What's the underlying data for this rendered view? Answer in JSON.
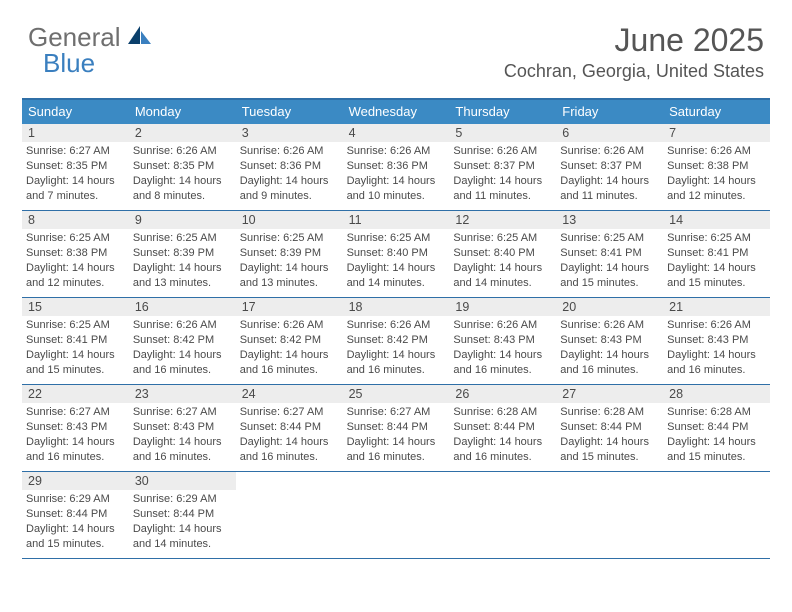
{
  "logo": {
    "part1": "General",
    "part2": "Blue"
  },
  "title": "June 2025",
  "location": "Cochran, Georgia, United States",
  "colors": {
    "header_bg": "#3b8ac4",
    "border": "#2f6fa7",
    "daynum_bg": "#ededed",
    "text": "#4a4a4a",
    "logo_gray": "#6f6f6f",
    "logo_blue": "#3a7fbf"
  },
  "day_names": [
    "Sunday",
    "Monday",
    "Tuesday",
    "Wednesday",
    "Thursday",
    "Friday",
    "Saturday"
  ],
  "weeks": [
    [
      {
        "n": "1",
        "sunrise": "Sunrise: 6:27 AM",
        "sunset": "Sunset: 8:35 PM",
        "day1": "Daylight: 14 hours",
        "day2": "and 7 minutes."
      },
      {
        "n": "2",
        "sunrise": "Sunrise: 6:26 AM",
        "sunset": "Sunset: 8:35 PM",
        "day1": "Daylight: 14 hours",
        "day2": "and 8 minutes."
      },
      {
        "n": "3",
        "sunrise": "Sunrise: 6:26 AM",
        "sunset": "Sunset: 8:36 PM",
        "day1": "Daylight: 14 hours",
        "day2": "and 9 minutes."
      },
      {
        "n": "4",
        "sunrise": "Sunrise: 6:26 AM",
        "sunset": "Sunset: 8:36 PM",
        "day1": "Daylight: 14 hours",
        "day2": "and 10 minutes."
      },
      {
        "n": "5",
        "sunrise": "Sunrise: 6:26 AM",
        "sunset": "Sunset: 8:37 PM",
        "day1": "Daylight: 14 hours",
        "day2": "and 11 minutes."
      },
      {
        "n": "6",
        "sunrise": "Sunrise: 6:26 AM",
        "sunset": "Sunset: 8:37 PM",
        "day1": "Daylight: 14 hours",
        "day2": "and 11 minutes."
      },
      {
        "n": "7",
        "sunrise": "Sunrise: 6:26 AM",
        "sunset": "Sunset: 8:38 PM",
        "day1": "Daylight: 14 hours",
        "day2": "and 12 minutes."
      }
    ],
    [
      {
        "n": "8",
        "sunrise": "Sunrise: 6:25 AM",
        "sunset": "Sunset: 8:38 PM",
        "day1": "Daylight: 14 hours",
        "day2": "and 12 minutes."
      },
      {
        "n": "9",
        "sunrise": "Sunrise: 6:25 AM",
        "sunset": "Sunset: 8:39 PM",
        "day1": "Daylight: 14 hours",
        "day2": "and 13 minutes."
      },
      {
        "n": "10",
        "sunrise": "Sunrise: 6:25 AM",
        "sunset": "Sunset: 8:39 PM",
        "day1": "Daylight: 14 hours",
        "day2": "and 13 minutes."
      },
      {
        "n": "11",
        "sunrise": "Sunrise: 6:25 AM",
        "sunset": "Sunset: 8:40 PM",
        "day1": "Daylight: 14 hours",
        "day2": "and 14 minutes."
      },
      {
        "n": "12",
        "sunrise": "Sunrise: 6:25 AM",
        "sunset": "Sunset: 8:40 PM",
        "day1": "Daylight: 14 hours",
        "day2": "and 14 minutes."
      },
      {
        "n": "13",
        "sunrise": "Sunrise: 6:25 AM",
        "sunset": "Sunset: 8:41 PM",
        "day1": "Daylight: 14 hours",
        "day2": "and 15 minutes."
      },
      {
        "n": "14",
        "sunrise": "Sunrise: 6:25 AM",
        "sunset": "Sunset: 8:41 PM",
        "day1": "Daylight: 14 hours",
        "day2": "and 15 minutes."
      }
    ],
    [
      {
        "n": "15",
        "sunrise": "Sunrise: 6:25 AM",
        "sunset": "Sunset: 8:41 PM",
        "day1": "Daylight: 14 hours",
        "day2": "and 15 minutes."
      },
      {
        "n": "16",
        "sunrise": "Sunrise: 6:26 AM",
        "sunset": "Sunset: 8:42 PM",
        "day1": "Daylight: 14 hours",
        "day2": "and 16 minutes."
      },
      {
        "n": "17",
        "sunrise": "Sunrise: 6:26 AM",
        "sunset": "Sunset: 8:42 PM",
        "day1": "Daylight: 14 hours",
        "day2": "and 16 minutes."
      },
      {
        "n": "18",
        "sunrise": "Sunrise: 6:26 AM",
        "sunset": "Sunset: 8:42 PM",
        "day1": "Daylight: 14 hours",
        "day2": "and 16 minutes."
      },
      {
        "n": "19",
        "sunrise": "Sunrise: 6:26 AM",
        "sunset": "Sunset: 8:43 PM",
        "day1": "Daylight: 14 hours",
        "day2": "and 16 minutes."
      },
      {
        "n": "20",
        "sunrise": "Sunrise: 6:26 AM",
        "sunset": "Sunset: 8:43 PM",
        "day1": "Daylight: 14 hours",
        "day2": "and 16 minutes."
      },
      {
        "n": "21",
        "sunrise": "Sunrise: 6:26 AM",
        "sunset": "Sunset: 8:43 PM",
        "day1": "Daylight: 14 hours",
        "day2": "and 16 minutes."
      }
    ],
    [
      {
        "n": "22",
        "sunrise": "Sunrise: 6:27 AM",
        "sunset": "Sunset: 8:43 PM",
        "day1": "Daylight: 14 hours",
        "day2": "and 16 minutes."
      },
      {
        "n": "23",
        "sunrise": "Sunrise: 6:27 AM",
        "sunset": "Sunset: 8:43 PM",
        "day1": "Daylight: 14 hours",
        "day2": "and 16 minutes."
      },
      {
        "n": "24",
        "sunrise": "Sunrise: 6:27 AM",
        "sunset": "Sunset: 8:44 PM",
        "day1": "Daylight: 14 hours",
        "day2": "and 16 minutes."
      },
      {
        "n": "25",
        "sunrise": "Sunrise: 6:27 AM",
        "sunset": "Sunset: 8:44 PM",
        "day1": "Daylight: 14 hours",
        "day2": "and 16 minutes."
      },
      {
        "n": "26",
        "sunrise": "Sunrise: 6:28 AM",
        "sunset": "Sunset: 8:44 PM",
        "day1": "Daylight: 14 hours",
        "day2": "and 16 minutes."
      },
      {
        "n": "27",
        "sunrise": "Sunrise: 6:28 AM",
        "sunset": "Sunset: 8:44 PM",
        "day1": "Daylight: 14 hours",
        "day2": "and 15 minutes."
      },
      {
        "n": "28",
        "sunrise": "Sunrise: 6:28 AM",
        "sunset": "Sunset: 8:44 PM",
        "day1": "Daylight: 14 hours",
        "day2": "and 15 minutes."
      }
    ],
    [
      {
        "n": "29",
        "sunrise": "Sunrise: 6:29 AM",
        "sunset": "Sunset: 8:44 PM",
        "day1": "Daylight: 14 hours",
        "day2": "and 15 minutes."
      },
      {
        "n": "30",
        "sunrise": "Sunrise: 6:29 AM",
        "sunset": "Sunset: 8:44 PM",
        "day1": "Daylight: 14 hours",
        "day2": "and 14 minutes."
      },
      null,
      null,
      null,
      null,
      null
    ]
  ]
}
